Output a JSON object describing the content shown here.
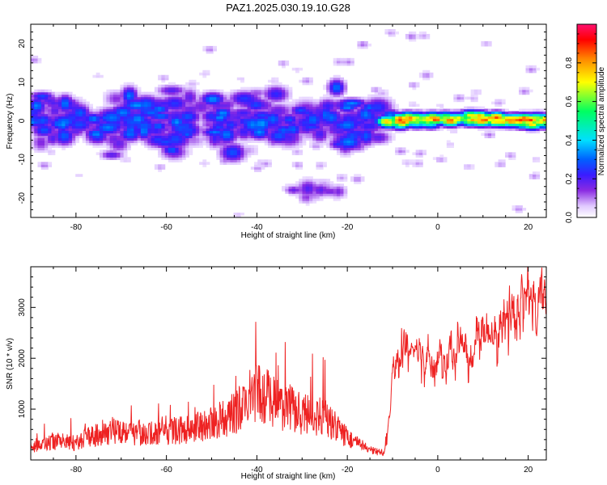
{
  "figure_title": "PAZ1.2025.030.19.10.G28",
  "chart_data": [
    {
      "type": "heatmap",
      "title": "PAZ1.2025.030.19.10.G28",
      "xlabel": "Height of straight line (km)",
      "ylabel": "Frequency (Hz)",
      "xlim": [
        -90,
        24
      ],
      "ylim": [
        -25,
        25
      ],
      "xticks": [
        -80,
        -60,
        -40,
        -20,
        0,
        20
      ],
      "yticks": [
        -20,
        -10,
        0,
        10,
        20
      ],
      "colorbar": {
        "label": "Normalized spectral amplitude",
        "range": [
          0.0,
          1.0
        ],
        "ticks": [
          "0.0",
          "0.2",
          "0.4",
          "0.6",
          "0.8"
        ],
        "colormap": [
          "#ffffff",
          "#e0c8ff",
          "#8a2be2",
          "#3a1cff",
          "#0060ff",
          "#00e0ff",
          "#00ff60",
          "#ffff00",
          "#ff8800",
          "#ff0000",
          "#ff1070"
        ]
      },
      "features": [
        {
          "x_range": [
            -90,
            -12
          ],
          "freq_center_hz": 0,
          "freq_spread_hz": 7,
          "peak_amplitude": 0.35
        },
        {
          "x_range": [
            -12,
            24
          ],
          "freq_center_hz": 0.5,
          "freq_spread_hz": 1.5,
          "peak_amplitude": 0.9
        },
        {
          "x_range": [
            -33,
            -22
          ],
          "freq_center_hz": -18,
          "freq_spread_hz": 2,
          "peak_amplitude": 0.2
        }
      ]
    },
    {
      "type": "line",
      "xlabel": "Height of straight line (km)",
      "ylabel": "SNR (10 * v/v)",
      "xlim": [
        -90,
        24
      ],
      "ylim": [
        0,
        3800
      ],
      "xticks": [
        -80,
        -60,
        -40,
        -20,
        0,
        20
      ],
      "yticks": [
        1000,
        2000,
        3000
      ],
      "color": "#ee2222",
      "series": [
        {
          "name": "SNR",
          "x": [
            -90,
            -85,
            -80,
            -75,
            -70,
            -65,
            -60,
            -55,
            -50,
            -45,
            -40,
            -35,
            -30,
            -25,
            -20,
            -15,
            -12,
            -11,
            -10,
            -8,
            -5,
            0,
            5,
            10,
            15,
            20,
            24
          ],
          "y": [
            200,
            320,
            280,
            450,
            520,
            420,
            480,
            520,
            620,
            780,
            1150,
            950,
            780,
            720,
            380,
            160,
            120,
            600,
            1800,
            2050,
            2100,
            1850,
            2200,
            2300,
            2650,
            3100,
            3200
          ]
        }
      ]
    }
  ]
}
